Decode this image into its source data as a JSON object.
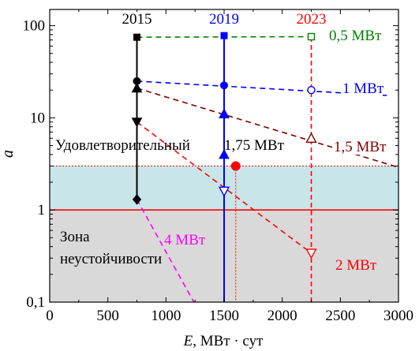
{
  "chart_data": {
    "type": "scatter",
    "xlabel_italic": "E",
    "xlabel_rest": ", МВт · сут",
    "ylabel": "a",
    "xscale": "linear",
    "yscale": "log",
    "xlim": [
      0,
      3000
    ],
    "ylim": [
      0.1,
      150
    ],
    "xticks": [
      0,
      500,
      1000,
      1500,
      2000,
      2500,
      3000
    ],
    "xtick_labels": [
      "0",
      "500",
      "1000",
      "1500",
      "2000",
      "2500",
      "3000"
    ],
    "yticks": [
      0.1,
      1,
      10,
      100
    ],
    "ytick_labels": [
      "0,1",
      "1",
      "10",
      "100"
    ],
    "bands": [
      {
        "name": "unstable",
        "label": "Зона\nнеустойчивости",
        "from": 0.1,
        "to": 1,
        "color": "#d9d9d9"
      },
      {
        "name": "satisfactory",
        "label": "Удовлетворительный",
        "from": 1,
        "to": 3,
        "color": "#c8e6ea"
      }
    ],
    "hlines": [
      {
        "name": "unstable-boundary",
        "y": 1,
        "color": "#ff0000",
        "style": "solid"
      },
      {
        "name": "satisfactory-boundary",
        "y": 3,
        "color": "#ff0000",
        "style": "dotted"
      }
    ],
    "years": [
      {
        "label": "2015",
        "x": 750,
        "color": "#000000",
        "line_from": 1.3,
        "line_to": 75,
        "style": "solid"
      },
      {
        "label": "2019",
        "x": 1500,
        "color": "#0000ff",
        "line_from": 0.1,
        "line_to": 78,
        "style": "solid"
      },
      {
        "label": "2023",
        "x": 2250,
        "color": "#ff0000",
        "line_from": 0.1,
        "line_to": 78,
        "style": "dashed"
      }
    ],
    "series": [
      {
        "name": "0,5 МВт",
        "color": "#008000",
        "points": [
          [
            750,
            75,
            "square-filled"
          ],
          [
            1500,
            78,
            "square-filled"
          ],
          [
            2250,
            76,
            "square-open"
          ]
        ],
        "line": [
          [
            750,
            75
          ],
          [
            2250,
            76
          ]
        ]
      },
      {
        "name": "1 МВт",
        "color": "#0000ff",
        "points": [
          [
            750,
            25,
            "circle-filled"
          ],
          [
            1500,
            22.5,
            "circle-filled"
          ],
          [
            2250,
            20,
            "circle-open"
          ]
        ],
        "line": [
          [
            750,
            25
          ],
          [
            2900,
            17.5
          ]
        ]
      },
      {
        "name": "1,5 МВт",
        "color": "#800000",
        "points": [
          [
            750,
            21,
            "triangle-up-filled"
          ],
          [
            1500,
            11,
            "triangle-up-filled"
          ],
          [
            2250,
            6,
            "triangle-up-open"
          ]
        ],
        "line": [
          [
            750,
            21
          ],
          [
            3000,
            2.9
          ]
        ]
      },
      {
        "name": "2 МВт",
        "color": "#ff0000",
        "points": [
          [
            750,
            9,
            "triangle-down-filled"
          ],
          [
            1500,
            1.6,
            "triangle-down-open"
          ],
          [
            2250,
            0.34,
            "triangle-down-open"
          ]
        ],
        "line": [
          [
            750,
            9
          ],
          [
            2250,
            0.34
          ]
        ]
      },
      {
        "name": "4 МВт",
        "color": "#ff00ff",
        "points": [
          [
            750,
            1.3,
            "diamond-filled"
          ]
        ],
        "line": [
          [
            750,
            1.3
          ],
          [
            1240,
            0.1
          ]
        ]
      }
    ],
    "blue_marks": [
      [
        1500,
        4,
        "triangle-up-filled"
      ],
      [
        1500,
        11,
        "triangle-up-filled"
      ]
    ],
    "special_point": {
      "label": "1,75 МВт",
      "x": 1600,
      "y": 3,
      "color": "#ff0000"
    }
  }
}
